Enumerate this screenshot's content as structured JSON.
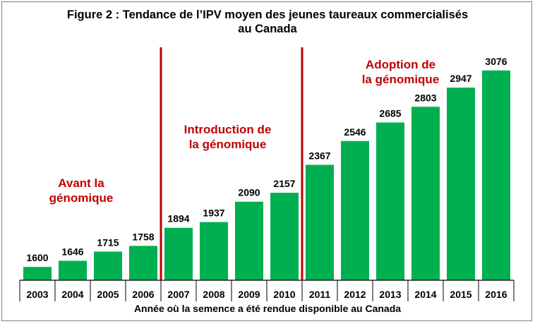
{
  "figure": {
    "title_line1": "Figure 2 : Tendance de l’IPV moyen des jeunes taureaux commercialisés",
    "title_line2": "au Canada"
  },
  "annotations": [
    {
      "line1": "Avant la",
      "line2": "génomique"
    },
    {
      "line1": "Introduction de",
      "line2": "la génomique"
    },
    {
      "line1": "Adoption de",
      "line2": "la génomique"
    }
  ],
  "chart_data": {
    "type": "bar",
    "title": "Figure 2 : Tendance de l’IPV moyen des jeunes taureaux commercialisés au Canada",
    "xlabel": "Année où la semence a été rendue disponible au Canada",
    "ylabel": "",
    "categories": [
      "2003",
      "2004",
      "2005",
      "2006",
      "2007",
      "2008",
      "2009",
      "2010",
      "2011",
      "2012",
      "2013",
      "2014",
      "2015",
      "2016"
    ],
    "values": [
      1600,
      1646,
      1715,
      1758,
      1894,
      1937,
      2090,
      2157,
      2367,
      2546,
      2685,
      2803,
      2947,
      3076
    ],
    "ylim": [
      1500,
      3250
    ],
    "bar_color": "#00b050",
    "separator_color": "#c00000",
    "separators_between": [
      [
        "2006",
        "2007"
      ],
      [
        "2010",
        "2011"
      ]
    ],
    "grid": false,
    "legend": "none"
  }
}
